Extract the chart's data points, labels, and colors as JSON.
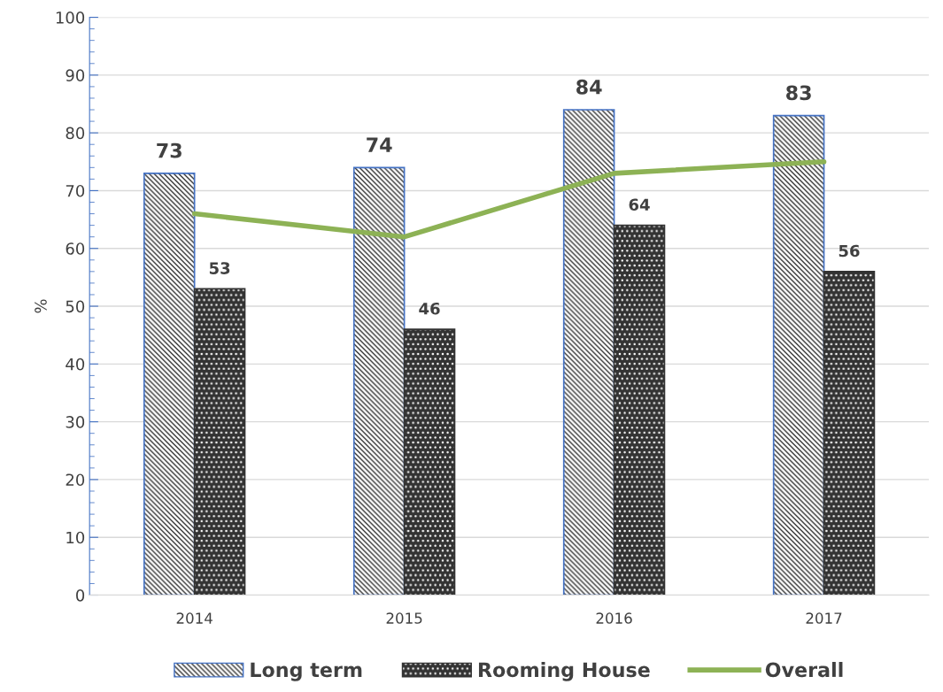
{
  "chart_data": {
    "type": "bar",
    "ylabel": "%",
    "categories": [
      "2014",
      "2015",
      "2016",
      "2017"
    ],
    "series": [
      {
        "name": "Long term",
        "color": "#4472c4",
        "values": [
          73,
          74,
          84,
          83
        ],
        "value_labels": [
          "73",
          "74",
          "84",
          "83"
        ]
      },
      {
        "name": "Rooming House",
        "color": "#333333",
        "values": [
          53,
          46,
          64,
          56
        ],
        "value_labels": [
          "53",
          "46",
          "64",
          "56"
        ]
      },
      {
        "name": "Overall",
        "type": "line",
        "color": "#8db255",
        "values": [
          66,
          62,
          73,
          75
        ]
      }
    ],
    "ylim": [
      0,
      100
    ],
    "yticks": [
      0,
      10,
      20,
      30,
      40,
      50,
      60,
      70,
      80,
      90,
      100
    ],
    "grid": "y",
    "legend": "bottom"
  }
}
